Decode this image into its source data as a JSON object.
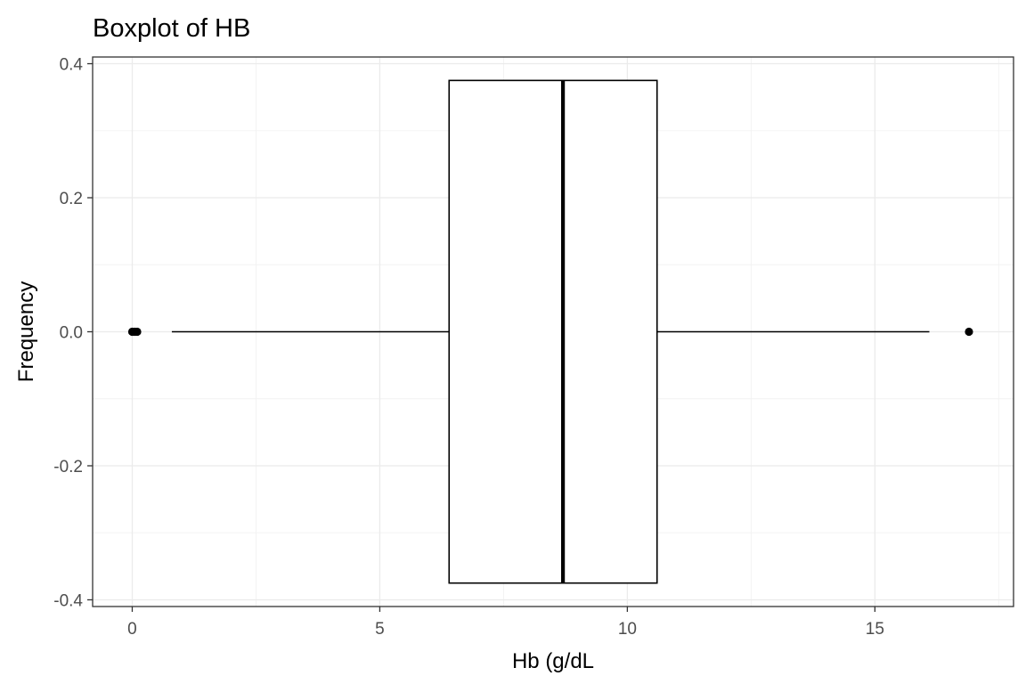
{
  "chart_data": {
    "type": "boxplot",
    "title": "Boxplot of HB",
    "xlabel": "Hb (g/dL",
    "ylabel": "Frequency",
    "xlim": [
      -0.8,
      17.8
    ],
    "ylim": [
      -0.41,
      0.41
    ],
    "x_ticks": [
      0,
      5,
      10,
      15
    ],
    "x_tick_labels": [
      "0",
      "5",
      "10",
      "15"
    ],
    "y_ticks": [
      -0.4,
      -0.2,
      0.0,
      0.2,
      0.4
    ],
    "y_tick_labels": [
      "-0.4",
      "-0.2",
      "0.0",
      "0.2",
      "0.4"
    ],
    "grid": true,
    "theme": "bw",
    "box": {
      "y_center": 0.0,
      "y_half_width": 0.375,
      "whisker_low": 0.8,
      "q1": 6.4,
      "median": 8.7,
      "q3": 10.6,
      "whisker_high": 16.1
    },
    "outliers": [
      0.0,
      0.05,
      0.1,
      16.9
    ]
  }
}
